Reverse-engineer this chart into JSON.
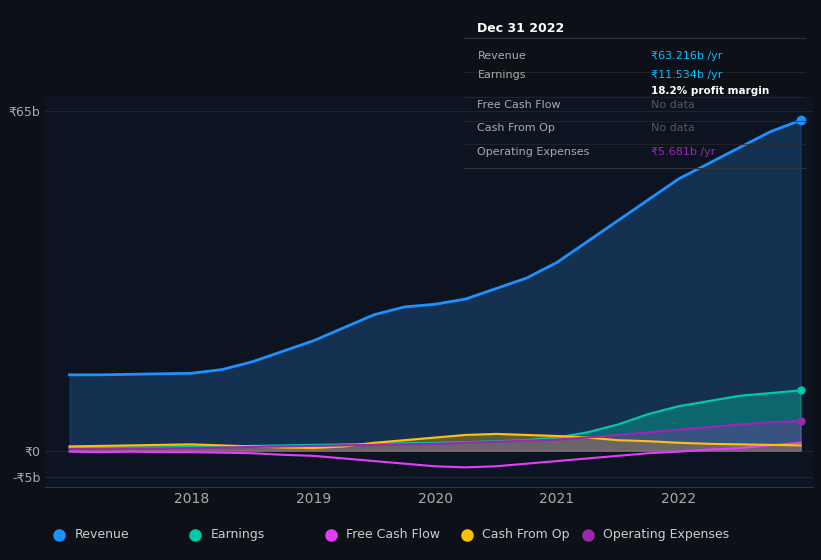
{
  "bg_color": "#0d1117",
  "plot_bg_color": "#0d1421",
  "grid_color": "#1e2a3a",
  "years": [
    2017.0,
    2017.25,
    2017.5,
    2017.75,
    2018.0,
    2018.25,
    2018.5,
    2018.75,
    2019.0,
    2019.25,
    2019.5,
    2019.75,
    2020.0,
    2020.25,
    2020.5,
    2020.75,
    2021.0,
    2021.25,
    2021.5,
    2021.75,
    2022.0,
    2022.25,
    2022.5,
    2022.75,
    2023.0
  ],
  "revenue": [
    14.5,
    14.5,
    14.6,
    14.7,
    14.8,
    15.5,
    17.0,
    19.0,
    21.0,
    23.5,
    26.0,
    27.5,
    28.0,
    29.0,
    31.0,
    33.0,
    36.0,
    40.0,
    44.0,
    48.0,
    52.0,
    55.0,
    58.0,
    61.0,
    63.2
  ],
  "earnings": [
    0.5,
    0.5,
    0.6,
    0.6,
    0.7,
    0.8,
    0.9,
    1.0,
    1.1,
    1.2,
    1.3,
    1.4,
    1.5,
    1.6,
    1.8,
    2.0,
    2.5,
    3.5,
    5.0,
    7.0,
    8.5,
    9.5,
    10.5,
    11.0,
    11.534
  ],
  "free_cash_flow": [
    -0.2,
    -0.3,
    -0.2,
    -0.3,
    -0.3,
    -0.4,
    -0.5,
    -0.8,
    -1.0,
    -1.5,
    -2.0,
    -2.5,
    -3.0,
    -3.2,
    -3.0,
    -2.5,
    -2.0,
    -1.5,
    -1.0,
    -0.5,
    -0.2,
    0.2,
    0.5,
    1.0,
    1.5
  ],
  "cash_from_op": [
    0.8,
    0.9,
    1.0,
    1.1,
    1.2,
    1.0,
    0.8,
    0.6,
    0.5,
    0.8,
    1.5,
    2.0,
    2.5,
    3.0,
    3.2,
    3.0,
    2.8,
    2.5,
    2.0,
    1.8,
    1.5,
    1.3,
    1.2,
    1.1,
    1.0
  ],
  "operating_expenses": [
    0.3,
    0.3,
    0.4,
    0.4,
    0.5,
    0.6,
    0.7,
    0.8,
    0.9,
    1.0,
    1.1,
    1.2,
    1.3,
    1.5,
    1.7,
    1.9,
    2.1,
    2.5,
    3.0,
    3.5,
    4.0,
    4.5,
    5.0,
    5.4,
    5.681
  ],
  "revenue_color": "#1e90ff",
  "revenue_fill": "#1a4a7a",
  "earnings_color": "#00c9a7",
  "free_cash_flow_color": "#e040fb",
  "cash_from_op_color": "#ffc107",
  "operating_expenses_color": "#9c27b0",
  "ytick_labels": [
    "₹65b",
    "₹0",
    "-₹5b"
  ],
  "ytick_positions": [
    65,
    0,
    -5
  ],
  "xtick_labels": [
    "2018",
    "2019",
    "2020",
    "2021",
    "2022"
  ],
  "xtick_positions": [
    2018,
    2019,
    2020,
    2021,
    2022
  ],
  "ylim": [
    -7,
    68
  ],
  "xlim": [
    2016.8,
    2023.1
  ],
  "info_box": {
    "title": "Dec 31 2022",
    "rows": [
      {
        "label": "Revenue",
        "value": "₹63.216b /yr",
        "value_color": "#00bfff",
        "note": null,
        "note_color": null
      },
      {
        "label": "Earnings",
        "value": "₹11.534b /yr",
        "value_color": "#00bfff",
        "note": "18.2% profit margin",
        "note_color": "#ffffff"
      },
      {
        "label": "Free Cash Flow",
        "value": "No data",
        "value_color": "#555555",
        "note": null,
        "note_color": null
      },
      {
        "label": "Cash From Op",
        "value": "No data",
        "value_color": "#555555",
        "note": null,
        "note_color": null
      },
      {
        "label": "Operating Expenses",
        "value": "₹5.681b /yr",
        "value_color": "#9c27b0",
        "note": null,
        "note_color": null
      }
    ]
  },
  "legend_items": [
    {
      "label": "Revenue",
      "color": "#1e90ff"
    },
    {
      "label": "Earnings",
      "color": "#00c9a7"
    },
    {
      "label": "Free Cash Flow",
      "color": "#e040fb"
    },
    {
      "label": "Cash From Op",
      "color": "#ffc107"
    },
    {
      "label": "Operating Expenses",
      "color": "#9c27b0"
    }
  ]
}
